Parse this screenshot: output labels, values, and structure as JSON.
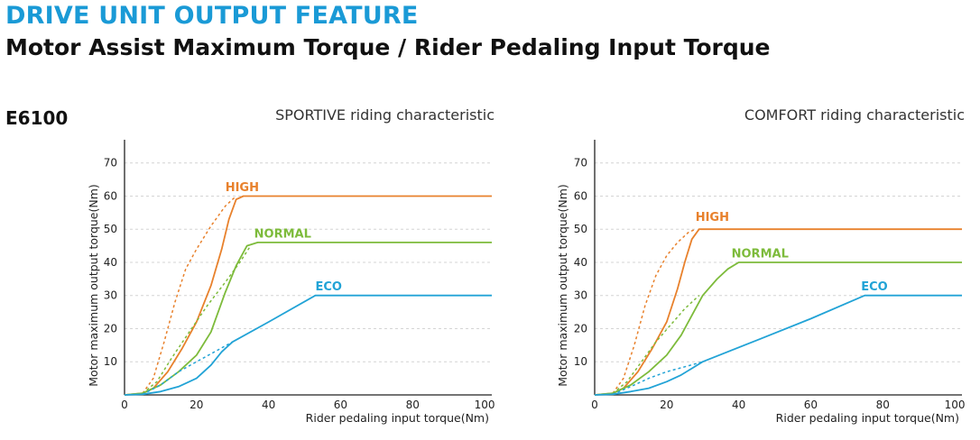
{
  "header": {
    "title": "DRIVE UNIT OUTPUT FEATURE",
    "subtitle": "Motor Assist Maximum Torque / Rider Pedaling Input Torque"
  },
  "model": "E6100",
  "colors": {
    "HIGH": "#e8812c",
    "NORMAL": "#7dbb3b",
    "ECO": "#22a3d6",
    "grid": "#d4d4d4"
  },
  "chart_data": [
    {
      "type": "line",
      "title": "SPORTIVE riding characteristic",
      "xlabel": "Rider pedaling input torque(Nm)",
      "ylabel": "Motor maximum output torque(Nm)",
      "xlim": [
        0,
        102
      ],
      "ylim": [
        0,
        77
      ],
      "xticks": [
        0,
        20,
        40,
        60,
        80,
        100
      ],
      "yticks": [
        10,
        20,
        30,
        40,
        50,
        60,
        70
      ],
      "grid": "horizontal dashed",
      "series": [
        {
          "name": "HIGH",
          "color": "#e8812c",
          "label_at": [
            28,
            61
          ],
          "x": [
            0,
            5,
            8,
            12,
            16,
            20,
            24,
            27,
            29,
            31,
            33,
            40,
            60,
            80,
            100,
            102
          ],
          "y": [
            0,
            0.5,
            2,
            7,
            14,
            22,
            33,
            44,
            53,
            59,
            60,
            60,
            60,
            60,
            60,
            60
          ],
          "dashed": {
            "x": [
              5,
              8,
              11,
              14,
              17,
              20,
              24,
              28,
              31
            ],
            "y": [
              0.5,
              5,
              16,
              28,
              38,
              44,
              51,
              57,
              60
            ]
          }
        },
        {
          "name": "NORMAL",
          "color": "#7dbb3b",
          "label_at": [
            36,
            47
          ],
          "x": [
            0,
            5,
            10,
            15,
            20,
            24,
            28,
            31,
            34,
            37,
            40,
            60,
            80,
            100,
            102
          ],
          "y": [
            0,
            0.5,
            3,
            7,
            12,
            19,
            31,
            39,
            45,
            46,
            46,
            46,
            46,
            46,
            46
          ],
          "dashed": {
            "x": [
              5,
              9,
              13,
              18,
              23,
              28,
              32,
              35
            ],
            "y": [
              0.5,
              4,
              11,
              19,
              27,
              34,
              40,
              45
            ]
          }
        },
        {
          "name": "ECO",
          "color": "#22a3d6",
          "label_at": [
            53,
            31
          ],
          "x": [
            0,
            5,
            10,
            15,
            20,
            24,
            27,
            30,
            40,
            53,
            60,
            80,
            100,
            102
          ],
          "y": [
            0,
            0.2,
            1,
            2.5,
            5,
            9,
            13,
            16,
            22,
            30,
            30,
            30,
            30,
            30
          ],
          "dashed": {
            "x": [
              5,
              10,
              15,
              20,
              25,
              30
            ],
            "y": [
              0.2,
              3,
              7,
              10,
              13,
              16
            ]
          }
        }
      ]
    },
    {
      "type": "line",
      "title": "COMFORT riding characteristic",
      "xlabel": "Rider pedaling input torque(Nm)",
      "ylabel": "Motor maximum output torque(Nm)",
      "xlim": [
        0,
        102
      ],
      "ylim": [
        0,
        77
      ],
      "xticks": [
        0,
        20,
        40,
        60,
        80,
        100
      ],
      "yticks": [
        10,
        20,
        30,
        40,
        50,
        60,
        70
      ],
      "grid": "horizontal dashed",
      "series": [
        {
          "name": "HIGH",
          "color": "#e8812c",
          "label_at": [
            28,
            52
          ],
          "x": [
            0,
            5,
            8,
            12,
            16,
            20,
            23,
            25,
            27,
            29,
            31,
            40,
            60,
            80,
            100,
            102
          ],
          "y": [
            0,
            0.5,
            2,
            7,
            14,
            22,
            32,
            40,
            47,
            50,
            50,
            50,
            50,
            50,
            50,
            50
          ],
          "dashed": {
            "x": [
              5,
              8,
              11,
              14,
              17,
              20,
              23,
              26,
              28
            ],
            "y": [
              0.5,
              5,
              15,
              27,
              36,
              42,
              46,
              49,
              50
            ]
          }
        },
        {
          "name": "NORMAL",
          "color": "#7dbb3b",
          "label_at": [
            38,
            41
          ],
          "x": [
            0,
            5,
            10,
            15,
            20,
            24,
            27,
            30,
            34,
            37,
            40,
            60,
            80,
            100,
            102
          ],
          "y": [
            0,
            0.5,
            3,
            7,
            12,
            18,
            24,
            30,
            35,
            38,
            40,
            40,
            40,
            40,
            40
          ],
          "dashed": {
            "x": [
              5,
              9,
              13,
              17,
              21,
              25,
              29
            ],
            "y": [
              0.5,
              4,
              10,
              16,
              21,
              26,
              30
            ]
          }
        },
        {
          "name": "ECO",
          "color": "#22a3d6",
          "label_at": [
            74,
            31
          ],
          "x": [
            0,
            5,
            10,
            15,
            20,
            24,
            27,
            30,
            45,
            60,
            75,
            80,
            100,
            102
          ],
          "y": [
            0,
            0.2,
            1,
            2,
            4,
            6,
            8,
            10,
            16.5,
            23,
            30,
            30,
            30,
            30
          ],
          "dashed": {
            "x": [
              5,
              10,
              15,
              20,
              25,
              30
            ],
            "y": [
              0.2,
              2.5,
              5,
              7,
              8.5,
              10
            ]
          }
        }
      ]
    }
  ]
}
